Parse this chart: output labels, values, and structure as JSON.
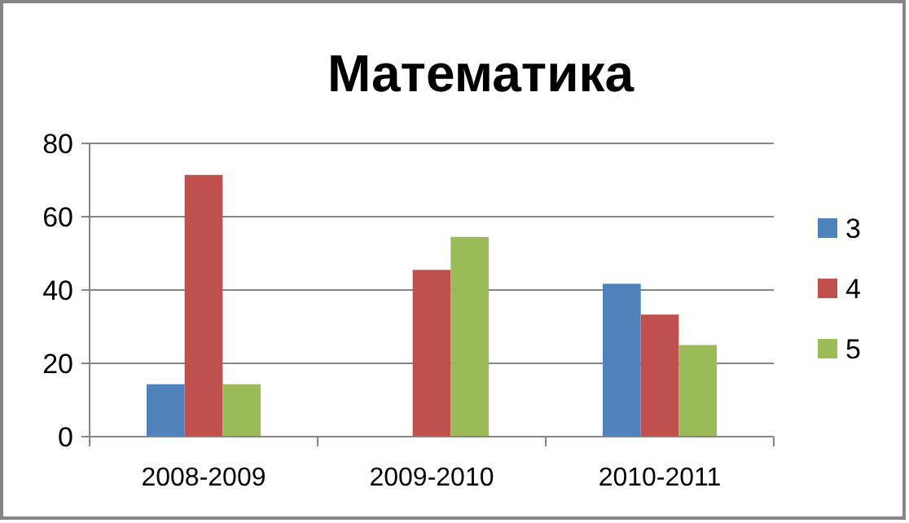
{
  "chart_data": {
    "type": "bar",
    "title": "Математика",
    "categories": [
      "2008-2009",
      "2009-2010",
      "2010-2011"
    ],
    "series": [
      {
        "name": "3",
        "color": "#4f81bd",
        "values": [
          14.3,
          0,
          41.7
        ]
      },
      {
        "name": "4",
        "color": "#c0504d",
        "values": [
          71.4,
          45.5,
          33.3
        ]
      },
      {
        "name": "5",
        "color": "#9bbb59",
        "values": [
          14.3,
          54.5,
          25
        ]
      }
    ],
    "ylim": [
      0,
      80
    ],
    "yticks": [
      0,
      20,
      40,
      60,
      80
    ],
    "grid": "y",
    "legend": "right"
  }
}
